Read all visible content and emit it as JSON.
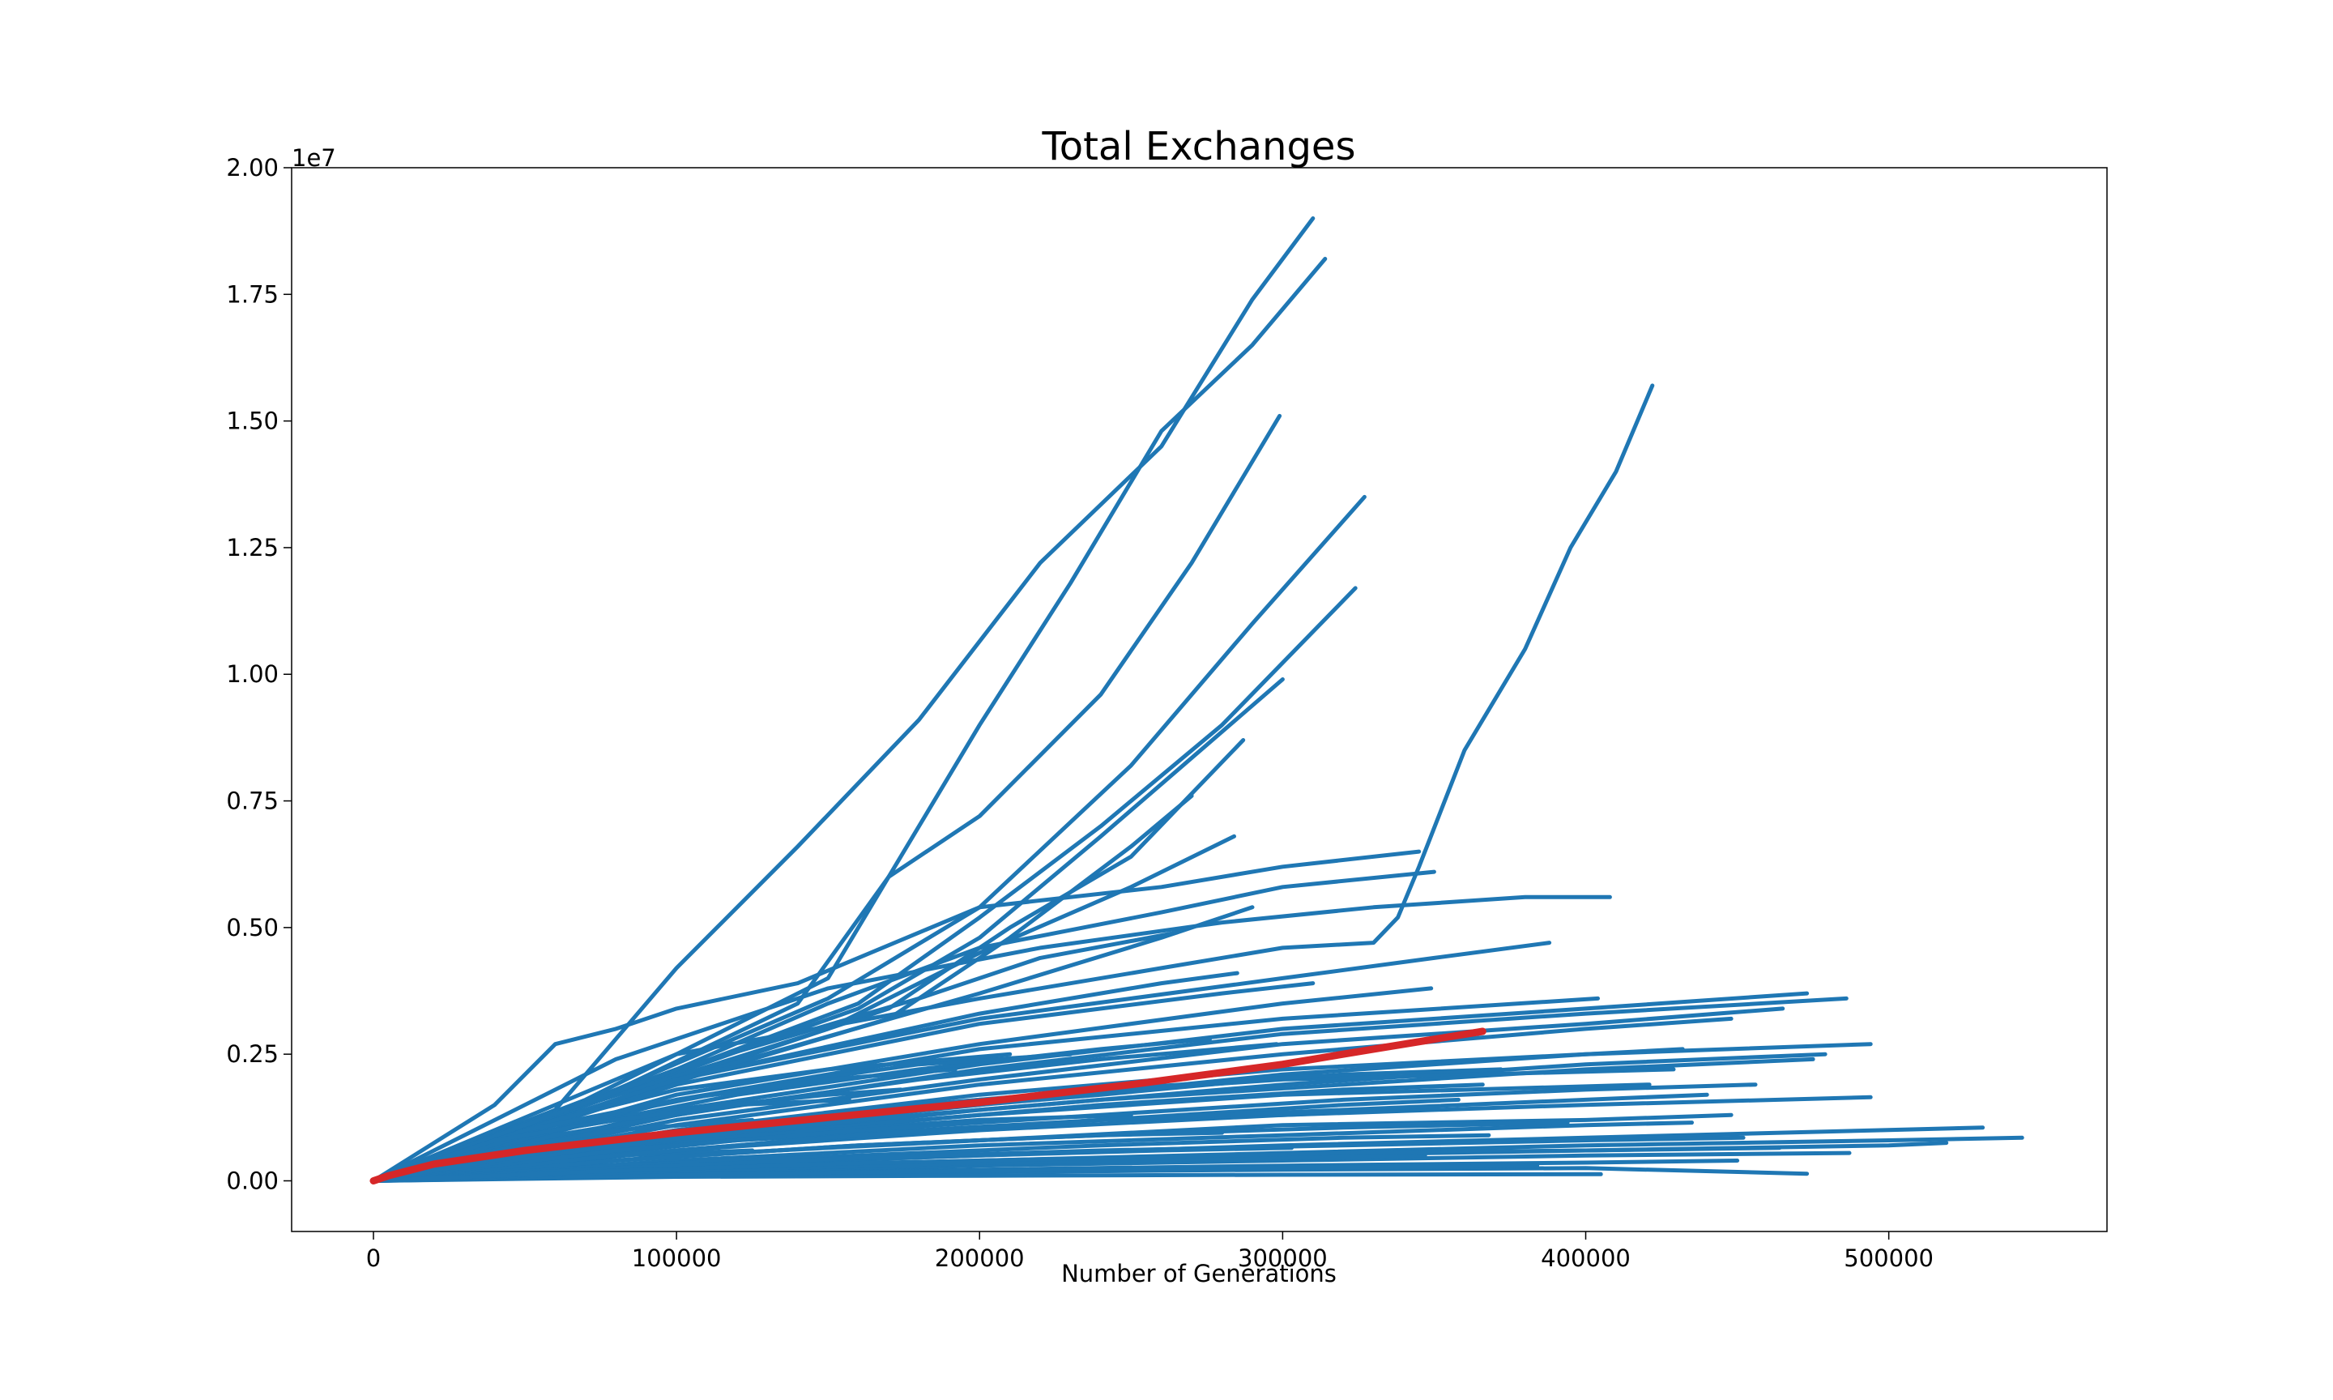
{
  "chart_data": {
    "type": "line",
    "title": "Total Exchanges",
    "xlabel": "Number of Generations",
    "ylabel": "",
    "y_offset_label": "1e7",
    "xlim": [
      -27000,
      572000
    ],
    "ylim": [
      -0.1,
      2.0
    ],
    "x_ticks": [
      0,
      100000,
      200000,
      300000,
      400000,
      500000
    ],
    "x_tick_labels": [
      "0",
      "100000",
      "200000",
      "300000",
      "400000",
      "500000"
    ],
    "y_ticks": [
      0.0,
      0.25,
      0.5,
      0.75,
      1.0,
      1.25,
      1.5,
      1.75,
      2.0
    ],
    "y_tick_labels": [
      "0.00",
      "0.25",
      "0.50",
      "0.75",
      "1.00",
      "1.25",
      "1.50",
      "1.75",
      "2.00"
    ],
    "grid": false,
    "colors": {
      "runs": "#1f77b4",
      "mean": "#d62728"
    },
    "series": [
      {
        "x": [
          0,
          60000,
          100000,
          140000,
          180000,
          220000,
          260000,
          290000,
          310000
        ],
        "y": [
          0,
          0.14,
          0.42,
          0.66,
          0.91,
          1.22,
          1.45,
          1.74,
          1.9
        ]
      },
      {
        "x": [
          0,
          70000,
          140000,
          170000,
          200000,
          230000,
          260000,
          290000,
          314000
        ],
        "y": [
          0,
          0.15,
          0.35,
          0.6,
          0.9,
          1.18,
          1.48,
          1.65,
          1.82
        ]
      },
      {
        "x": [
          0,
          70000,
          150000,
          170000,
          200000,
          240000,
          270000,
          299000
        ],
        "y": [
          0,
          0.16,
          0.4,
          0.6,
          0.72,
          0.96,
          1.22,
          1.51
        ]
      },
      {
        "x": [
          0,
          80000,
          150000,
          200000,
          250000,
          290000,
          327000
        ],
        "y": [
          0,
          0.18,
          0.36,
          0.54,
          0.82,
          1.1,
          1.35
        ]
      },
      {
        "x": [
          0,
          80000,
          160000,
          200000,
          240000,
          280000,
          324000
        ],
        "y": [
          0,
          0.17,
          0.35,
          0.52,
          0.7,
          0.9,
          1.17
        ]
      },
      {
        "x": [
          0,
          80000,
          160000,
          200000,
          240000,
          300000
        ],
        "y": [
          0,
          0.17,
          0.34,
          0.48,
          0.68,
          0.99
        ]
      },
      {
        "x": [
          0,
          80000,
          170000,
          210000,
          250000,
          287000
        ],
        "y": [
          0,
          0.16,
          0.34,
          0.5,
          0.64,
          0.87
        ]
      },
      {
        "x": [
          0,
          80000,
          170000,
          210000,
          250000,
          270000
        ],
        "y": [
          0,
          0.16,
          0.32,
          0.48,
          0.66,
          0.76
        ]
      },
      {
        "x": [
          0,
          70000,
          150000,
          200000,
          250000,
          284000
        ],
        "y": [
          0,
          0.15,
          0.3,
          0.45,
          0.58,
          0.68
        ]
      },
      {
        "x": [
          0,
          100000,
          200000,
          260000,
          300000,
          330000,
          338000,
          345000,
          360000,
          380000,
          395000,
          410000,
          422000
        ],
        "y": [
          0,
          0.25,
          0.36,
          0.42,
          0.46,
          0.47,
          0.52,
          0.62,
          0.85,
          1.05,
          1.25,
          1.4,
          1.57
        ]
      },
      {
        "x": [
          0,
          40000,
          60000,
          80000,
          100000,
          140000,
          200000,
          260000,
          300000,
          345000
        ],
        "y": [
          0,
          0.15,
          0.27,
          0.3,
          0.34,
          0.39,
          0.54,
          0.58,
          0.62,
          0.65
        ]
      },
      {
        "x": [
          0,
          100000,
          150000,
          200000,
          260000,
          300000,
          350000
        ],
        "y": [
          0,
          0.22,
          0.35,
          0.46,
          0.53,
          0.58,
          0.61
        ]
      },
      {
        "x": [
          0,
          80000,
          150000,
          220000,
          280000,
          330000,
          380000,
          408000
        ],
        "y": [
          0,
          0.24,
          0.38,
          0.46,
          0.51,
          0.54,
          0.56,
          0.56
        ]
      },
      {
        "x": [
          0,
          100000,
          200000,
          260000,
          290000
        ],
        "y": [
          0,
          0.2,
          0.37,
          0.48,
          0.54
        ]
      },
      {
        "x": [
          0,
          100000,
          180000,
          220000,
          265000
        ],
        "y": [
          0,
          0.22,
          0.36,
          0.44,
          0.49
        ]
      },
      {
        "x": [
          0,
          100000,
          200000,
          300000,
          350000,
          388000
        ],
        "y": [
          0,
          0.2,
          0.32,
          0.4,
          0.44,
          0.47
        ]
      },
      {
        "x": [
          0,
          100000,
          200000,
          260000,
          285000
        ],
        "y": [
          0,
          0.2,
          0.33,
          0.39,
          0.41
        ]
      },
      {
        "x": [
          0,
          100000,
          200000,
          280000,
          310000
        ],
        "y": [
          0,
          0.19,
          0.31,
          0.37,
          0.39
        ]
      },
      {
        "x": [
          0,
          100000,
          200000,
          300000,
          349000
        ],
        "y": [
          0,
          0.17,
          0.27,
          0.35,
          0.38
        ]
      },
      {
        "x": [
          0,
          100000,
          200000,
          300000,
          400000,
          473000
        ],
        "y": [
          0,
          0.14,
          0.23,
          0.3,
          0.34,
          0.37
        ]
      },
      {
        "x": [
          0,
          100000,
          200000,
          300000,
          400000,
          486000
        ],
        "y": [
          0,
          0.13,
          0.22,
          0.29,
          0.33,
          0.36
        ]
      },
      {
        "x": [
          0,
          100000,
          200000,
          300000,
          404000
        ],
        "y": [
          0,
          0.16,
          0.26,
          0.32,
          0.36
        ]
      },
      {
        "x": [
          0,
          100000,
          200000,
          300000,
          400000,
          465000
        ],
        "y": [
          0,
          0.12,
          0.2,
          0.27,
          0.31,
          0.34
        ]
      },
      {
        "x": [
          0,
          100000,
          200000,
          300000,
          400000,
          448000
        ],
        "y": [
          0,
          0.11,
          0.19,
          0.25,
          0.3,
          0.32
        ]
      },
      {
        "x": [
          0,
          100000,
          200000,
          300000,
          400000,
          494000
        ],
        "y": [
          0,
          0.09,
          0.15,
          0.21,
          0.25,
          0.27
        ]
      },
      {
        "x": [
          0,
          100000,
          200000,
          300000,
          400000,
          479000
        ],
        "y": [
          0,
          0.08,
          0.14,
          0.19,
          0.23,
          0.25
        ]
      },
      {
        "x": [
          0,
          100000,
          200000,
          300000,
          400000,
          432000
        ],
        "y": [
          0,
          0.1,
          0.17,
          0.22,
          0.25,
          0.26
        ]
      },
      {
        "x": [
          0,
          100000,
          200000,
          300000,
          429000
        ],
        "y": [
          0,
          0.1,
          0.16,
          0.2,
          0.22
        ]
      },
      {
        "x": [
          0,
          100000,
          200000,
          300000,
          421000
        ],
        "y": [
          0,
          0.08,
          0.13,
          0.17,
          0.19
        ]
      },
      {
        "x": [
          0,
          100000,
          200000,
          300000,
          400000,
          494000
        ],
        "y": [
          0,
          0.06,
          0.1,
          0.13,
          0.15,
          0.165
        ]
      },
      {
        "x": [
          0,
          100000,
          200000,
          300000,
          400000,
          448000
        ],
        "y": [
          0,
          0.05,
          0.08,
          0.11,
          0.12,
          0.13
        ]
      },
      {
        "x": [
          0,
          100000,
          200000,
          300000,
          400000,
          435000
        ],
        "y": [
          0,
          0.04,
          0.07,
          0.09,
          0.11,
          0.115
        ]
      },
      {
        "x": [
          0,
          100000,
          200000,
          300000,
          400000,
          531000
        ],
        "y": [
          0,
          0.03,
          0.05,
          0.07,
          0.085,
          0.105
        ]
      },
      {
        "x": [
          0,
          100000,
          200000,
          300000,
          400000,
          500000,
          544000
        ],
        "y": [
          0,
          0.02,
          0.04,
          0.055,
          0.07,
          0.08,
          0.085
        ]
      },
      {
        "x": [
          0,
          100000,
          200000,
          300000,
          400000,
          500000,
          519000
        ],
        "y": [
          0,
          0.02,
          0.035,
          0.05,
          0.06,
          0.07,
          0.075
        ]
      },
      {
        "x": [
          0,
          100000,
          200000,
          300000,
          400000,
          487000
        ],
        "y": [
          0,
          0.015,
          0.03,
          0.04,
          0.05,
          0.055
        ]
      },
      {
        "x": [
          0,
          100000,
          200000,
          300000,
          400000,
          450000
        ],
        "y": [
          0,
          0.012,
          0.022,
          0.03,
          0.036,
          0.04
        ]
      },
      {
        "x": [
          0,
          100000,
          200000,
          300000,
          400000,
          473000
        ],
        "y": [
          0,
          0.01,
          0.017,
          0.022,
          0.025,
          0.014
        ]
      },
      {
        "x": [
          0,
          100000,
          200000,
          300000,
          405000
        ],
        "y": [
          0,
          0.008,
          0.01,
          0.012,
          0.013
        ]
      },
      {
        "x": [
          0,
          100000,
          200000,
          300000,
          384000
        ],
        "y": [
          0,
          0.012,
          0.02,
          0.025,
          0.03
        ]
      },
      {
        "x": [
          0,
          100000,
          200000,
          300000,
          347000
        ],
        "y": [
          0,
          0.02,
          0.035,
          0.045,
          0.05
        ]
      },
      {
        "x": [
          0,
          100000,
          200000,
          260000,
          303000
        ],
        "y": [
          0,
          0.03,
          0.05,
          0.06,
          0.065
        ]
      },
      {
        "x": [
          0,
          80000,
          160000,
          240000,
          280000
        ],
        "y": [
          0,
          0.04,
          0.07,
          0.09,
          0.095
        ]
      },
      {
        "x": [
          0,
          80000,
          160000,
          240000,
          320000,
          358000
        ],
        "y": [
          0,
          0.05,
          0.09,
          0.12,
          0.15,
          0.16
        ]
      },
      {
        "x": [
          0,
          80000,
          160000,
          240000,
          320000,
          366000
        ],
        "y": [
          0,
          0.06,
          0.11,
          0.15,
          0.18,
          0.19
        ]
      },
      {
        "x": [
          0,
          80000,
          160000,
          240000,
          312000
        ],
        "y": [
          0,
          0.08,
          0.13,
          0.17,
          0.21
        ]
      },
      {
        "x": [
          0,
          60000,
          120000,
          180000,
          240000,
          298000
        ],
        "y": [
          0,
          0.09,
          0.15,
          0.2,
          0.24,
          0.27
        ]
      },
      {
        "x": [
          0,
          60000,
          120000,
          180000,
          240000,
          276000
        ],
        "y": [
          0,
          0.1,
          0.17,
          0.22,
          0.26,
          0.28
        ]
      },
      {
        "x": [
          0,
          60000,
          120000,
          180000,
          230000
        ],
        "y": [
          0,
          0.11,
          0.18,
          0.23,
          0.25
        ]
      },
      {
        "x": [
          0,
          60000,
          100000,
          150000,
          210000
        ],
        "y": [
          0,
          0.12,
          0.18,
          0.22,
          0.25
        ]
      },
      {
        "x": [
          0,
          50000,
          100000,
          150000,
          192000
        ],
        "y": [
          0,
          0.1,
          0.16,
          0.2,
          0.22
        ]
      },
      {
        "x": [
          0,
          50000,
          100000,
          150000,
          174000
        ],
        "y": [
          0,
          0.09,
          0.14,
          0.17,
          0.18
        ]
      },
      {
        "x": [
          0,
          40000,
          80000,
          120000,
          157000
        ],
        "y": [
          0,
          0.08,
          0.12,
          0.15,
          0.16
        ]
      },
      {
        "x": [
          0,
          40000,
          80000,
          125000
        ],
        "y": [
          0,
          0.06,
          0.1,
          0.12
        ]
      },
      {
        "x": [
          0,
          40000,
          80000,
          125000
        ],
        "y": [
          0,
          0.03,
          0.05,
          0.06
        ]
      },
      {
        "x": [
          0,
          50000,
          100000,
          150000,
          200000,
          250000
        ],
        "y": [
          0,
          0.05,
          0.08,
          0.1,
          0.12,
          0.13
        ]
      },
      {
        "x": [
          0,
          60000,
          120000,
          180000,
          240000,
          300000,
          341000
        ],
        "y": [
          0,
          0.045,
          0.08,
          0.1,
          0.12,
          0.13,
          0.14
        ]
      },
      {
        "x": [
          0,
          80000,
          160000,
          240000,
          320000,
          394000
        ],
        "y": [
          0,
          0.04,
          0.07,
          0.09,
          0.105,
          0.115
        ]
      },
      {
        "x": [
          0,
          80000,
          160000,
          240000,
          320000,
          400000,
          440000
        ],
        "y": [
          0,
          0.05,
          0.09,
          0.12,
          0.14,
          0.16,
          0.17
        ]
      },
      {
        "x": [
          0,
          80000,
          160000,
          240000,
          320000,
          400000,
          456000
        ],
        "y": [
          0,
          0.06,
          0.1,
          0.13,
          0.16,
          0.18,
          0.19
        ]
      },
      {
        "x": [
          0,
          80000,
          160000,
          240000,
          320000,
          400000,
          475000
        ],
        "y": [
          0,
          0.07,
          0.12,
          0.16,
          0.19,
          0.22,
          0.24
        ]
      },
      {
        "x": [
          0,
          80000,
          160000,
          240000,
          320000,
          372000
        ],
        "y": [
          0,
          0.08,
          0.14,
          0.18,
          0.21,
          0.22
        ]
      },
      {
        "x": [
          0,
          80000,
          160000,
          240000,
          320000,
          368000
        ],
        "y": [
          0,
          0.03,
          0.05,
          0.07,
          0.085,
          0.09
        ]
      },
      {
        "x": [
          0,
          80000,
          160000,
          240000,
          320000,
          400000,
          452000
        ],
        "y": [
          0,
          0.025,
          0.045,
          0.06,
          0.07,
          0.08,
          0.085
        ]
      },
      {
        "x": [
          0,
          80000,
          160000,
          240000,
          320000,
          400000,
          464000
        ],
        "y": [
          0,
          0.02,
          0.035,
          0.045,
          0.055,
          0.06,
          0.065
        ]
      }
    ],
    "mean_series": {
      "x": [
        0,
        5000,
        20000,
        50000,
        100000,
        150000,
        200000,
        250000,
        300000,
        330000,
        366000
      ],
      "y": [
        0,
        0.01,
        0.033,
        0.06,
        0.095,
        0.125,
        0.155,
        0.19,
        0.23,
        0.26,
        0.295
      ]
    }
  }
}
